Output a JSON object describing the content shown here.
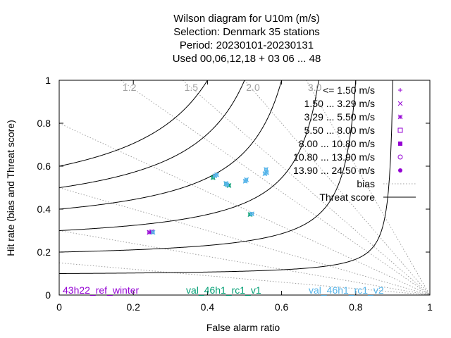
{
  "title": {
    "line1": "Wilson diagram  for U10m (m/s)",
    "line2": "Selection: Denmark     35 stations",
    "line3": "Period: 20230101-20230131",
    "line4": "Used  00,06,12,18  + 03 06 ... 48"
  },
  "chart_data": {
    "type": "scatter",
    "xlabel": "False alarm ratio",
    "ylabel": "Hit rate (bias and Threat score)",
    "xlim": [
      0,
      1
    ],
    "ylim": [
      0,
      1
    ],
    "xticks": [
      "0",
      "0.2",
      "0.4",
      "0.6",
      "0.8",
      "1"
    ],
    "yticks": [
      "0",
      "0.2",
      "0.4",
      "0.6",
      "0.8",
      "1"
    ],
    "bias_labels": [
      "1.2",
      "1.5",
      "2.0",
      "3.0"
    ],
    "bias_values": [
      1.2,
      1.5,
      2.0,
      3.0,
      0.8,
      0.5,
      0.3,
      0.15
    ],
    "threat_score_values": [
      0.1,
      0.2,
      0.3,
      0.4,
      0.5,
      0.6
    ],
    "legend": {
      "position": "top-right",
      "classes": [
        "<= 1.50 m/s",
        "1.50 ... 3.29 m/s",
        "3.29 ... 5.50 m/s",
        "5.50 ... 8.00 m/s",
        "8.00 ... 10.80 m/s",
        "10.80 ... 13.90 m/s",
        "13.90 ... 24.50 m/s"
      ],
      "lines": [
        "bias",
        "Threat score"
      ]
    },
    "series": [
      {
        "name": "43h22_ref_winter",
        "color": "#9400d3",
        "points": [
          [
            0.25,
            0.295
          ],
          [
            0.243,
            0.292
          ]
        ]
      },
      {
        "name": "val_46h1_rc1_v1",
        "color": "#009e73",
        "points": [
          [
            0.415,
            0.547
          ],
          [
            0.45,
            0.518
          ],
          [
            0.458,
            0.51
          ],
          [
            0.515,
            0.375
          ]
        ]
      },
      {
        "name": "val_46h1_rc1_v2",
        "color": "#56b4e9",
        "points": [
          [
            0.253,
            0.292
          ],
          [
            0.42,
            0.555
          ],
          [
            0.425,
            0.56
          ],
          [
            0.45,
            0.52
          ],
          [
            0.453,
            0.513
          ],
          [
            0.505,
            0.537
          ],
          [
            0.502,
            0.53
          ],
          [
            0.555,
            0.565
          ],
          [
            0.56,
            0.57
          ],
          [
            0.558,
            0.585
          ],
          [
            0.52,
            0.378
          ]
        ]
      }
    ]
  }
}
